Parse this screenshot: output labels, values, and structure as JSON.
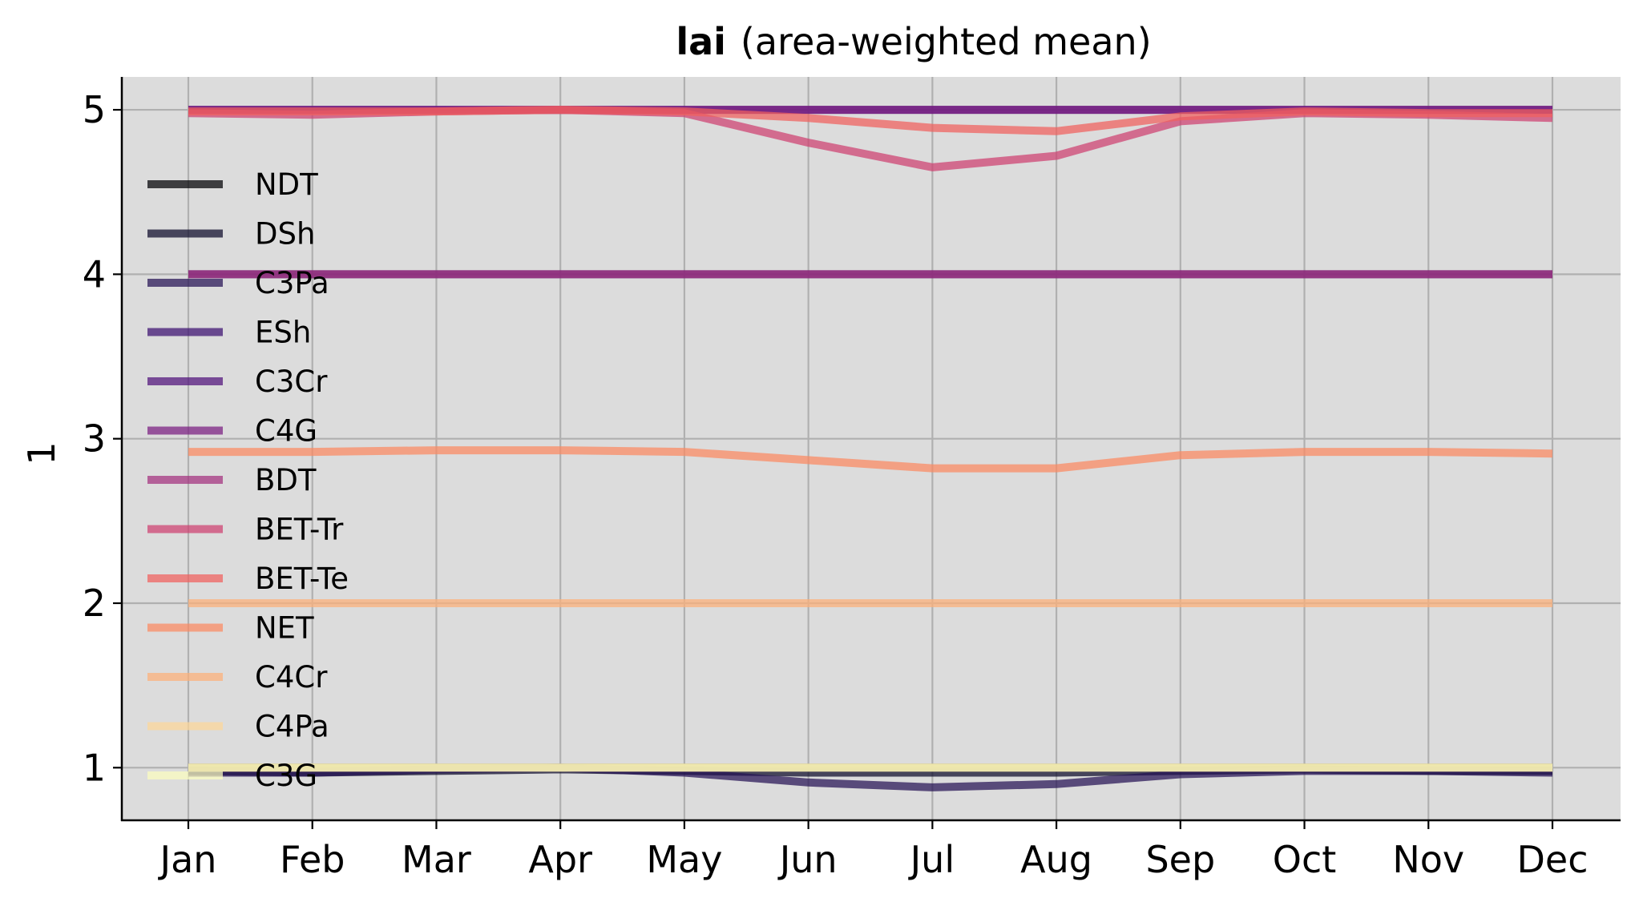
{
  "chart_data": {
    "type": "line",
    "title": "lai",
    "subtitle": "(area-weighted mean)",
    "xlabel": "",
    "ylabel": "1",
    "categories": [
      "Jan",
      "Feb",
      "Mar",
      "Apr",
      "May",
      "Jun",
      "Jul",
      "Aug",
      "Sep",
      "Oct",
      "Nov",
      "Dec"
    ],
    "ylim": [
      0.68,
      5.2
    ],
    "yticks": [
      1,
      2,
      3,
      4,
      5
    ],
    "grid": true,
    "legend_position": "left",
    "background": "#dcdcdc",
    "series": [
      {
        "name": "NDT",
        "color": "#000004",
        "values": [
          1,
          1,
          1,
          1,
          1,
          1,
          1,
          1,
          1,
          1,
          1,
          1
        ]
      },
      {
        "name": "DSh",
        "color": "#0d0a29",
        "values": [
          0.98,
          0.97,
          0.98,
          0.99,
          0.98,
          0.97,
          0.97,
          0.97,
          0.98,
          0.99,
          0.98,
          0.98
        ]
      },
      {
        "name": "C3Pa",
        "color": "#251255",
        "values": [
          0.97,
          0.97,
          0.99,
          1.0,
          0.97,
          0.91,
          0.88,
          0.9,
          0.96,
          0.98,
          0.98,
          0.97
        ]
      },
      {
        "name": "ESh",
        "color": "#3b0f70",
        "values": [
          4,
          4,
          4,
          4,
          4,
          4,
          4,
          4,
          4,
          4,
          4,
          4
        ]
      },
      {
        "name": "C3Cr",
        "color": "#51127c",
        "values": [
          5,
          5,
          5,
          5,
          5,
          5,
          5,
          5,
          5,
          5,
          5,
          5
        ]
      },
      {
        "name": "C4G",
        "color": "#7a1d81",
        "values": [
          5,
          5,
          5,
          5,
          5,
          5,
          5,
          5,
          5,
          5,
          5,
          5
        ]
      },
      {
        "name": "BDT",
        "color": "#a3307e",
        "values": [
          4,
          4,
          4,
          4,
          4,
          4,
          4,
          4,
          4,
          4,
          4,
          4
        ]
      },
      {
        "name": "BET-Tr",
        "color": "#cf4070",
        "values": [
          4.98,
          4.97,
          4.99,
          5.0,
          4.98,
          4.8,
          4.65,
          4.72,
          4.93,
          4.98,
          4.97,
          4.95
        ]
      },
      {
        "name": "BET-Te",
        "color": "#f1605d",
        "values": [
          4.99,
          4.99,
          4.99,
          5.0,
          4.99,
          4.95,
          4.89,
          4.87,
          4.96,
          4.99,
          4.98,
          4.98
        ]
      },
      {
        "name": "NET",
        "color": "#fc8961",
        "values": [
          2.92,
          2.92,
          2.93,
          2.93,
          2.92,
          2.87,
          2.82,
          2.82,
          2.9,
          2.92,
          2.92,
          2.91
        ]
      },
      {
        "name": "C4Cr",
        "color": "#feb078",
        "values": [
          2,
          2,
          2,
          2,
          2,
          2,
          2,
          2,
          2,
          2,
          2,
          2
        ]
      },
      {
        "name": "C4Pa",
        "color": "#fed799",
        "values": [
          1,
          1,
          1,
          1,
          1,
          1,
          1,
          1,
          1,
          1,
          1,
          1
        ]
      },
      {
        "name": "C3G",
        "color": "#fcfdbf",
        "values": [
          1,
          1,
          1,
          1,
          1,
          1,
          1,
          1,
          1,
          1,
          1,
          1
        ]
      }
    ]
  }
}
